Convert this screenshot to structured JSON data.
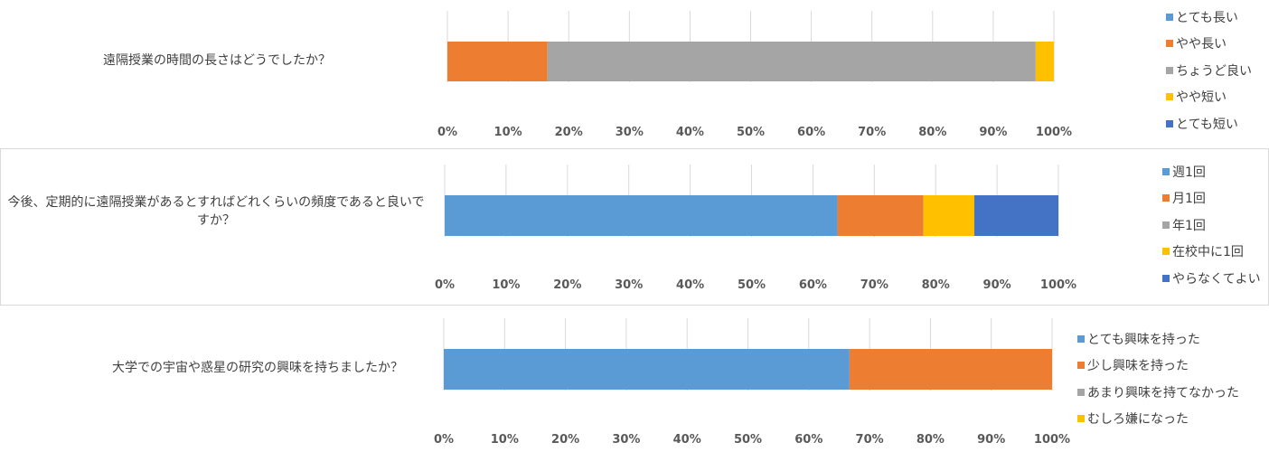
{
  "chart_data": [
    {
      "type": "bar",
      "orientation": "horizontal",
      "stacked": "percent",
      "categories": [
        "遠隔授業の時間の長さはどうでしたか？"
      ],
      "series": [
        {
          "name": "とても長い",
          "values": [
            0
          ],
          "color": "#5b9bd5"
        },
        {
          "name": "やや長い",
          "values": [
            16.5
          ],
          "color": "#ed7d31"
        },
        {
          "name": "ちょうど良い",
          "values": [
            80.5
          ],
          "color": "#a5a5a5"
        },
        {
          "name": "やや短い",
          "values": [
            3.0
          ],
          "color": "#ffc000"
        },
        {
          "name": "とても短い",
          "values": [
            0
          ],
          "color": "#4472c4"
        }
      ],
      "xticks": [
        "0%",
        "10%",
        "20%",
        "30%",
        "40%",
        "50%",
        "60%",
        "70%",
        "80%",
        "90%",
        "100%"
      ],
      "xlim": [
        0,
        100
      ],
      "grid": true,
      "legend_position": "right"
    },
    {
      "type": "bar",
      "orientation": "horizontal",
      "stacked": "percent",
      "categories": [
        "今後、定期的に遠隔授業があるとすればどれくらいの頻度であると良いですか？"
      ],
      "series": [
        {
          "name": "週1回",
          "values": [
            64
          ],
          "color": "#5b9bd5"
        },
        {
          "name": "月1回",
          "values": [
            14
          ],
          "color": "#ed7d31"
        },
        {
          "name": "年1回",
          "values": [
            0
          ],
          "color": "#a5a5a5"
        },
        {
          "name": "在校中に1回",
          "values": [
            8.3
          ],
          "color": "#ffc000"
        },
        {
          "name": "やらなくてよい",
          "values": [
            13.7
          ],
          "color": "#4472c4"
        }
      ],
      "xticks": [
        "0%",
        "10%",
        "20%",
        "30%",
        "40%",
        "50%",
        "60%",
        "70%",
        "80%",
        "90%",
        "100%"
      ],
      "xlim": [
        0,
        100
      ],
      "grid": true,
      "legend_position": "right"
    },
    {
      "type": "bar",
      "orientation": "horizontal",
      "stacked": "percent",
      "categories": [
        "大学での宇宙や惑星の研究の興味を持ちましたか？"
      ],
      "series": [
        {
          "name": "とても興味を持った",
          "values": [
            66.7
          ],
          "color": "#5b9bd5"
        },
        {
          "name": "少し興味を持った",
          "values": [
            33.3
          ],
          "color": "#ed7d31"
        },
        {
          "name": "あまり興味を持てなかった",
          "values": [
            0
          ],
          "color": "#a5a5a5"
        },
        {
          "name": "むしろ嫌になった",
          "values": [
            0
          ],
          "color": "#ffc000"
        }
      ],
      "xticks": [
        "0%",
        "10%",
        "20%",
        "30%",
        "40%",
        "50%",
        "60%",
        "70%",
        "80%",
        "90%",
        "100%"
      ],
      "xlim": [
        0,
        100
      ],
      "grid": true,
      "legend_position": "right"
    }
  ]
}
